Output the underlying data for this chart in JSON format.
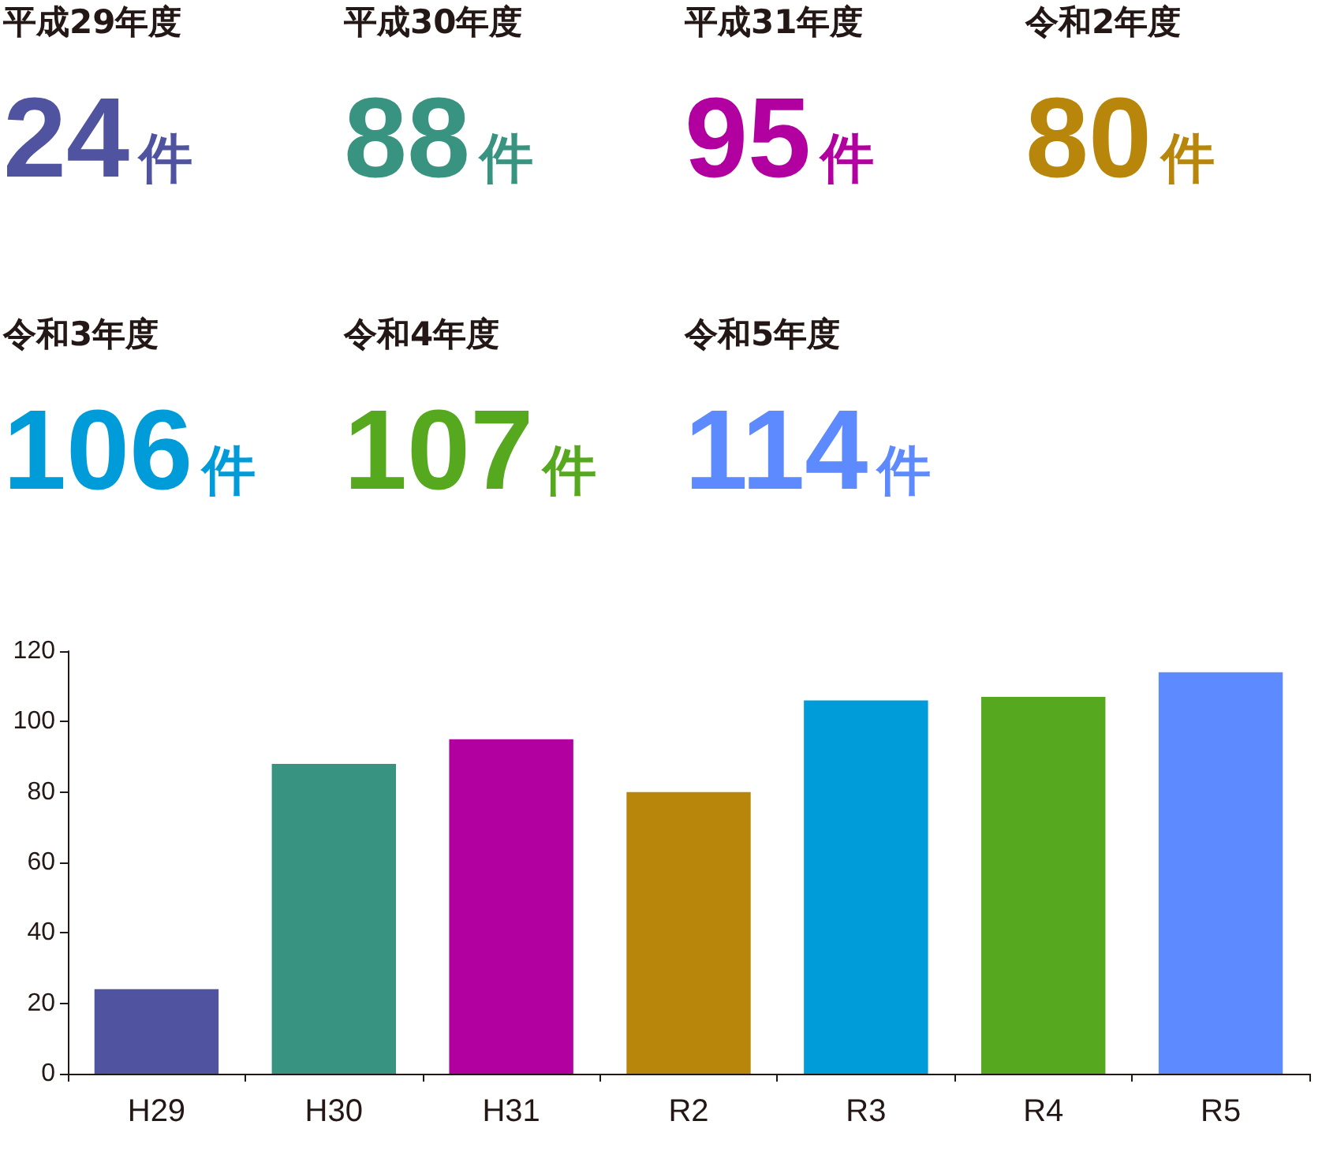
{
  "chart_data": {
    "type": "bar",
    "categories": [
      "H29",
      "H30",
      "H31",
      "R2",
      "R3",
      "R4",
      "R5"
    ],
    "values": [
      24,
      88,
      95,
      80,
      106,
      107,
      114
    ],
    "colors": [
      "#4f53a0",
      "#389380",
      "#b200a0",
      "#b8860b",
      "#009cd9",
      "#56a81f",
      "#5e8aff"
    ],
    "annotations": [
      "平成29年度",
      "24件",
      "平成30年度",
      "88件",
      "平成31年度",
      "95件",
      "令和2年度",
      "80件",
      "令和3年度",
      "106件",
      "令和4年度",
      "107件",
      "令和5年度",
      "114件"
    ],
    "ylim": [
      0,
      120
    ],
    "yticks": [
      0,
      20,
      40,
      60,
      80,
      100,
      120
    ],
    "grid": false
  }
}
